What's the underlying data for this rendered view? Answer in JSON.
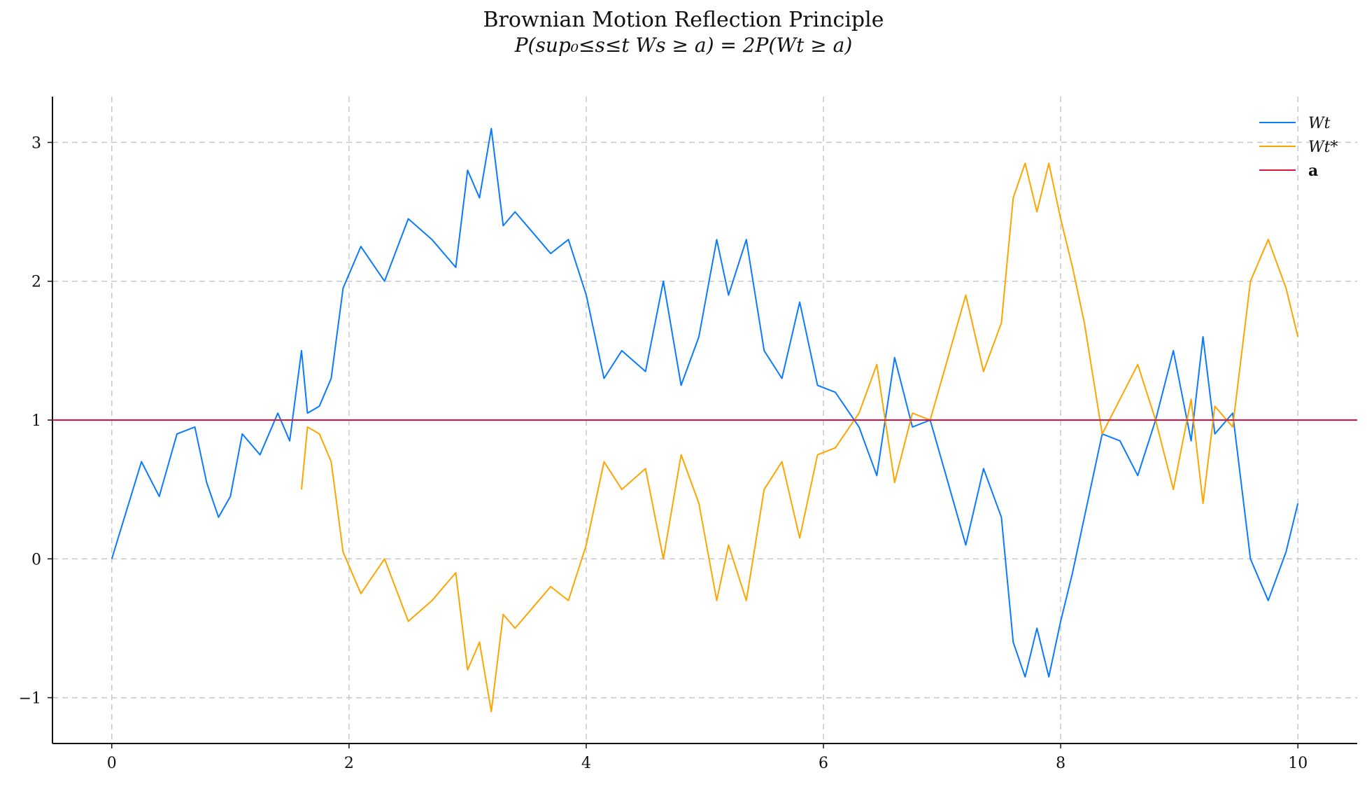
{
  "chart_data": {
    "type": "line",
    "title": "Brownian Motion Reflection Principle",
    "subtitle": "P(sup₀≤s≤t Ws ≥ a) = 2P(Wt ≥ a)",
    "xlabel": "",
    "ylabel": "",
    "xlim": [
      -0.5,
      10.5
    ],
    "ylim": [
      -1.33,
      3.33
    ],
    "xticks": [
      0,
      2,
      4,
      6,
      8,
      10
    ],
    "xtick_labels": [
      "0",
      "2",
      "4",
      "6",
      "8",
      "10"
    ],
    "yticks": [
      -1,
      0,
      1,
      2,
      3
    ],
    "ytick_labels": [
      "−1",
      "0",
      "1",
      "2",
      "3"
    ],
    "grid": true,
    "legend_position": "top-right",
    "threshold": {
      "name": "a",
      "value": 1.0,
      "color": "#dc143c"
    },
    "series": [
      {
        "name": "Wt",
        "color": "#0a7bff",
        "x": [
          0,
          0.25,
          0.4,
          0.55,
          0.7,
          0.8,
          0.9,
          1.0,
          1.1,
          1.25,
          1.4,
          1.5,
          1.6,
          1.65,
          1.75,
          1.85,
          1.95,
          2.1,
          2.3,
          2.5,
          2.7,
          2.9,
          3.0,
          3.1,
          3.2,
          3.3,
          3.4,
          3.55,
          3.7,
          3.85,
          4.0,
          4.15,
          4.3,
          4.5,
          4.65,
          4.8,
          4.95,
          5.1,
          5.2,
          5.35,
          5.5,
          5.65,
          5.8,
          5.95,
          6.1,
          6.3,
          6.45,
          6.6,
          6.75,
          6.9,
          7.05,
          7.2,
          7.35,
          7.5,
          7.6,
          7.7,
          7.8,
          7.9,
          8.0,
          8.1,
          8.2,
          8.35,
          8.5,
          8.65,
          8.8,
          8.95,
          9.1,
          9.2,
          9.3,
          9.45,
          9.6,
          9.75,
          9.9,
          10.0
        ],
        "y": [
          0,
          0.7,
          0.45,
          0.9,
          0.95,
          0.55,
          0.3,
          0.45,
          0.9,
          0.75,
          1.05,
          0.85,
          1.5,
          1.05,
          1.1,
          1.3,
          1.95,
          2.25,
          2.0,
          2.45,
          2.3,
          2.1,
          2.8,
          2.6,
          3.1,
          2.4,
          2.5,
          2.35,
          2.2,
          2.3,
          1.9,
          1.3,
          1.5,
          1.35,
          2.0,
          1.25,
          1.6,
          2.3,
          1.9,
          2.3,
          1.5,
          1.3,
          1.85,
          1.25,
          1.2,
          0.95,
          0.6,
          1.45,
          0.95,
          1.0,
          0.55,
          0.1,
          0.65,
          0.3,
          -0.6,
          -0.85,
          -0.5,
          -0.85,
          -0.45,
          -0.1,
          0.3,
          0.9,
          0.85,
          0.6,
          1.0,
          1.5,
          0.85,
          1.6,
          0.9,
          1.05,
          0.0,
          -0.3,
          0.05,
          0.4
        ]
      },
      {
        "name": "Wt*",
        "color": "#ffa500",
        "x": [
          1.6,
          1.65,
          1.75,
          1.85,
          1.95,
          2.1,
          2.3,
          2.5,
          2.7,
          2.9,
          3.0,
          3.1,
          3.2,
          3.3,
          3.4,
          3.55,
          3.7,
          3.85,
          4.0,
          4.15,
          4.3,
          4.5,
          4.65,
          4.8,
          4.95,
          5.1,
          5.2,
          5.35,
          5.5,
          5.65,
          5.8,
          5.95,
          6.1,
          6.3,
          6.45,
          6.6,
          6.75,
          6.9,
          7.05,
          7.2,
          7.35,
          7.5,
          7.6,
          7.7,
          7.8,
          7.9,
          8.0,
          8.1,
          8.2,
          8.35,
          8.5,
          8.65,
          8.8,
          8.95,
          9.1,
          9.2,
          9.3,
          9.45,
          9.6,
          9.75,
          9.9,
          10.0
        ],
        "y": [
          0.5,
          0.95,
          0.9,
          0.7,
          0.05,
          -0.25,
          0.0,
          -0.45,
          -0.3,
          -0.1,
          -0.8,
          -0.6,
          -1.1,
          -0.4,
          -0.5,
          -0.35,
          -0.2,
          -0.3,
          0.1,
          0.7,
          0.5,
          0.65,
          0.0,
          0.75,
          0.4,
          -0.3,
          0.1,
          -0.3,
          0.5,
          0.7,
          0.15,
          0.75,
          0.8,
          1.05,
          1.4,
          0.55,
          1.05,
          1.0,
          1.45,
          1.9,
          1.35,
          1.7,
          2.6,
          2.85,
          2.5,
          2.85,
          2.45,
          2.1,
          1.7,
          0.9,
          1.15,
          1.4,
          1.0,
          0.5,
          1.15,
          0.4,
          1.1,
          0.95,
          2.0,
          2.3,
          1.95,
          1.6
        ]
      }
    ]
  }
}
